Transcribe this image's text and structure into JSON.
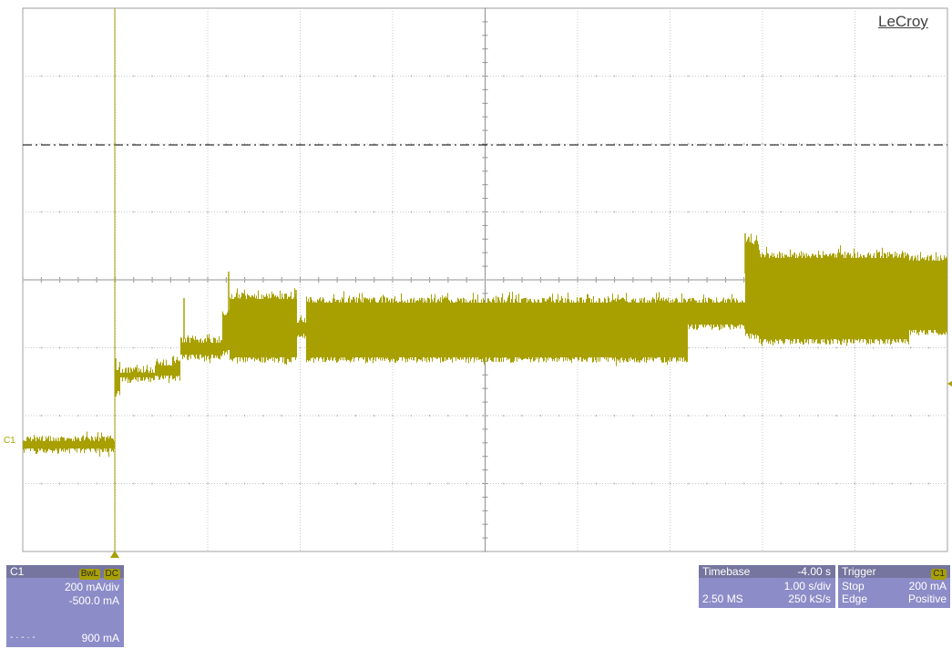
{
  "brand": "LeCroy",
  "channel_marker": "C1",
  "trace_color": "#a8a000",
  "grid_divs": {
    "x": 10,
    "y": 8
  },
  "channel_panel": {
    "name": "C1",
    "tag_bwl": "BwL",
    "tag_coupling": "DC",
    "vdiv": "200 mA/div",
    "offset": "-500.0 mA",
    "ref_line": "- · - · -",
    "ref_value": "900 mA"
  },
  "timebase_panel": {
    "title": "Timebase",
    "delay": "-4.00 s",
    "tdiv": "1.00 s/div",
    "samples": "2.50 MS",
    "rate": "250 kS/s"
  },
  "trigger_panel": {
    "title": "Trigger",
    "source": "C1",
    "mode": "Stop",
    "level": "200 mA",
    "type": "Edge",
    "slope": "Positive"
  }
}
